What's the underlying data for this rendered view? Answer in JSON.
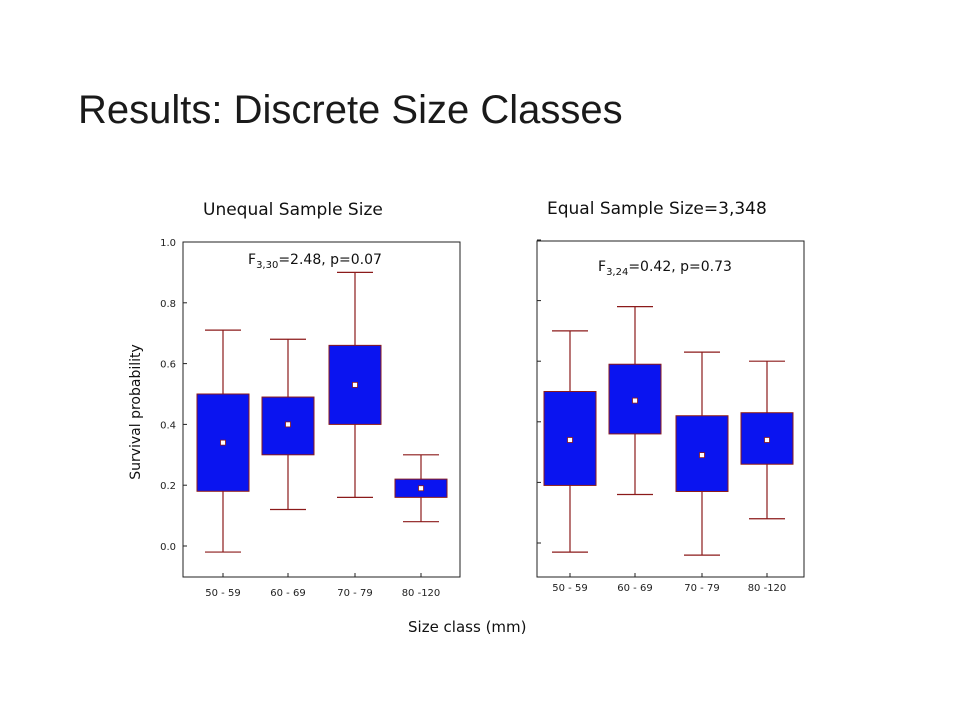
{
  "slide": {
    "title": "Results: Discrete Size Classes"
  },
  "colors": {
    "box_fill": "#0a14f0",
    "whisker": "#8b1a1a",
    "mean_marker": "#ffffff",
    "frame": "#222222"
  },
  "chart_data": [
    {
      "type": "box",
      "title": "Unequal Sample Size",
      "ylabel": "Survival probability",
      "xlabel": "Size class (mm)",
      "ylim": [
        -0.1,
        1.0
      ],
      "yticks": [
        1.0,
        0.8,
        0.6,
        0.4,
        0.2,
        0.0
      ],
      "ytick_labels": [
        "1.0",
        "0.8",
        "0.6",
        "0.4",
        "0.2",
        "0.0"
      ],
      "annotation": {
        "prefix": "F",
        "sub": "3,30",
        "rest": "=2.48, p=0.07"
      },
      "categories": [
        "50 - 59",
        "60 - 69",
        "70 - 79",
        "80 -120"
      ],
      "boxes": [
        {
          "mean": 0.34,
          "q1": 0.18,
          "q3": 0.5,
          "whisker_low": -0.02,
          "whisker_high": 0.71
        },
        {
          "mean": 0.4,
          "q1": 0.3,
          "q3": 0.49,
          "whisker_low": 0.12,
          "whisker_high": 0.68
        },
        {
          "mean": 0.53,
          "q1": 0.4,
          "q3": 0.66,
          "whisker_low": 0.16,
          "whisker_high": 0.9
        },
        {
          "mean": 0.19,
          "q1": 0.16,
          "q3": 0.22,
          "whisker_low": 0.08,
          "whisker_high": 0.3
        }
      ]
    },
    {
      "type": "box",
      "title": "Equal Sample Size=3,348",
      "ylim": [
        -0.1,
        1.0
      ],
      "yticks": [
        1.0,
        0.8,
        0.6,
        0.4,
        0.2,
        0.0
      ],
      "annotation": {
        "prefix": "F",
        "sub": "3,24",
        "rest": "=0.42, p=0.73"
      },
      "categories": [
        "50 - 59",
        "60 - 69",
        "70 - 79",
        "80 -120"
      ],
      "boxes": [
        {
          "mean": 0.34,
          "q1": 0.19,
          "q3": 0.5,
          "whisker_low": -0.03,
          "whisker_high": 0.7
        },
        {
          "mean": 0.47,
          "q1": 0.36,
          "q3": 0.59,
          "whisker_low": 0.16,
          "whisker_high": 0.78
        },
        {
          "mean": 0.29,
          "q1": 0.17,
          "q3": 0.42,
          "whisker_low": -0.04,
          "whisker_high": 0.63
        },
        {
          "mean": 0.34,
          "q1": 0.26,
          "q3": 0.43,
          "whisker_low": 0.08,
          "whisker_high": 0.6
        }
      ]
    }
  ]
}
